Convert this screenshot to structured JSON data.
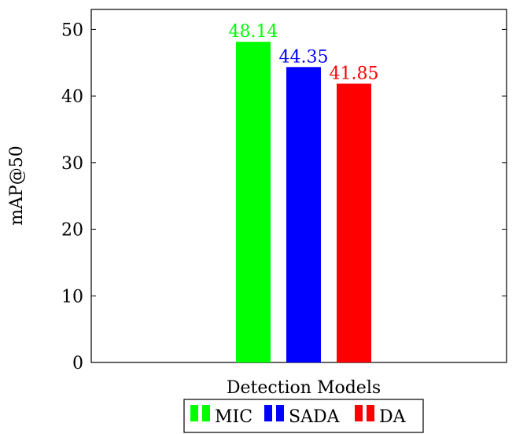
{
  "chart_data": {
    "type": "bar",
    "categories": [
      "Detection Models"
    ],
    "series": [
      {
        "name": "MIC",
        "values": [
          48.14
        ],
        "color": "#00ff00",
        "label": "48.14"
      },
      {
        "name": "SADA",
        "values": [
          44.35
        ],
        "color": "#0000ff",
        "label": "44.35"
      },
      {
        "name": "DA",
        "values": [
          41.85
        ],
        "color": "#ff0000",
        "label": "41.85"
      }
    ],
    "xlabel": "Detection Models",
    "ylabel": "mAP@50",
    "ylim": [
      0,
      53
    ],
    "yticks": [
      "0",
      "10",
      "20",
      "30",
      "40",
      "50"
    ],
    "legend": {
      "position": "bottom",
      "orientation": "horizontal"
    },
    "grid": false
  }
}
